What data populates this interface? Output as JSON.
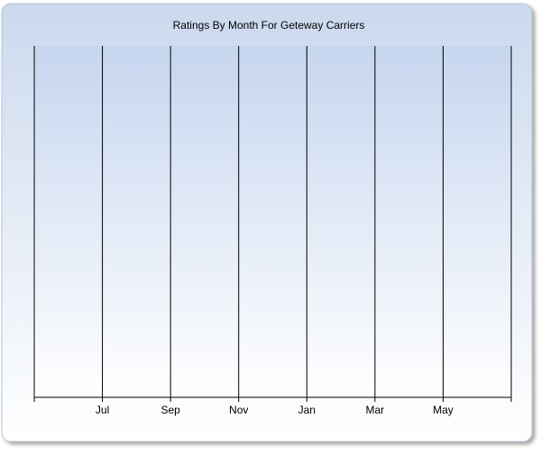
{
  "chart_data": {
    "type": "line",
    "title": "Ratings By Month For Geteway Carriers",
    "categories": [
      null,
      "Jul",
      "Sep",
      "Nov",
      "Jan",
      "Mar",
      "May",
      null
    ],
    "grid": true
  }
}
